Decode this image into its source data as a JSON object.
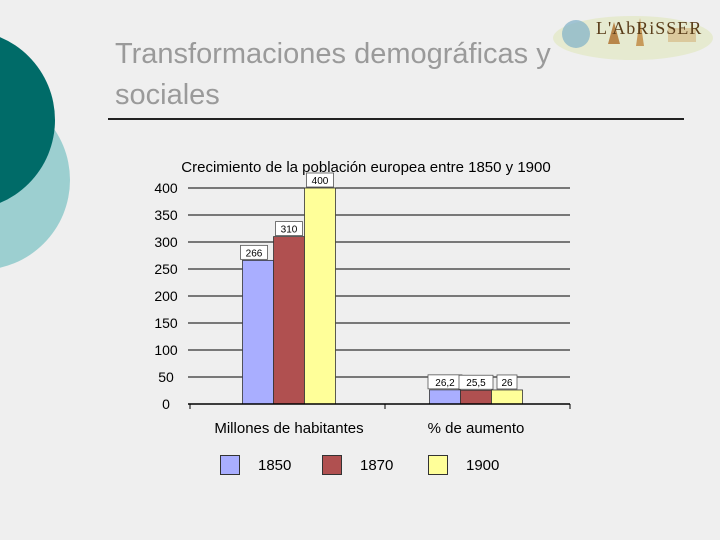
{
  "slide": {
    "title": "Transformaciones demográficas y sociales",
    "logo_text": "L'AbRiSSER"
  },
  "colors": {
    "deco_dark": "#006b68",
    "deco_light": "#9ccfd0",
    "series_1850": "#a9aeff",
    "series_1870": "#b05050",
    "series_1900": "#ffff99"
  },
  "chart_data": {
    "type": "bar",
    "title": "Crecimiento de la población europea entre 1850 y 1900",
    "categories": [
      "Millones de habitantes",
      "% de aumento"
    ],
    "series": [
      {
        "name": "1850",
        "values": [
          266,
          26.2
        ],
        "labels": [
          "266",
          "26,2"
        ]
      },
      {
        "name": "1870",
        "values": [
          310,
          25.5
        ],
        "labels": [
          "310",
          "25,5"
        ]
      },
      {
        "name": "1900",
        "values": [
          400,
          26
        ],
        "labels": [
          "400",
          "26"
        ]
      }
    ],
    "yticks": [
      0,
      50,
      100,
      150,
      200,
      250,
      300,
      350,
      400
    ],
    "ylim": [
      0,
      400
    ],
    "grid": true,
    "legend_position": "bottom"
  }
}
